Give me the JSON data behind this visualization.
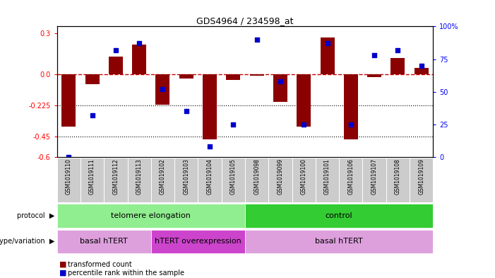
{
  "title": "GDS4964 / 234598_at",
  "samples": [
    "GSM1019110",
    "GSM1019111",
    "GSM1019112",
    "GSM1019113",
    "GSM1019102",
    "GSM1019103",
    "GSM1019104",
    "GSM1019105",
    "GSM1019098",
    "GSM1019099",
    "GSM1019100",
    "GSM1019101",
    "GSM1019106",
    "GSM1019107",
    "GSM1019108",
    "GSM1019109"
  ],
  "red_bars": [
    -0.38,
    -0.07,
    0.13,
    0.22,
    -0.22,
    -0.03,
    -0.47,
    -0.04,
    -0.01,
    -0.2,
    -0.38,
    0.27,
    -0.47,
    -0.02,
    0.12,
    0.05
  ],
  "blue_percentiles": [
    0,
    32,
    82,
    87,
    52,
    35,
    8,
    25,
    90,
    58,
    25,
    87,
    25,
    78,
    82,
    70
  ],
  "ylim_left": [
    -0.6,
    0.35
  ],
  "ylim_right": [
    0,
    100
  ],
  "yticks_left": [
    0.3,
    0.0,
    -0.225,
    -0.45,
    -0.6
  ],
  "yticks_right": [
    100,
    75,
    50,
    25,
    0
  ],
  "protocol_groups": [
    {
      "label": "telomere elongation",
      "start": 0,
      "end": 7,
      "color": "#90EE90"
    },
    {
      "label": "control",
      "start": 8,
      "end": 15,
      "color": "#33CC33"
    }
  ],
  "genotype_groups": [
    {
      "label": "basal hTERT",
      "start": 0,
      "end": 3,
      "color": "#DDA0DD"
    },
    {
      "label": "hTERT overexpression",
      "start": 4,
      "end": 7,
      "color": "#CC44CC"
    },
    {
      "label": "basal hTERT",
      "start": 8,
      "end": 15,
      "color": "#DDA0DD"
    }
  ],
  "bar_color": "#8B0000",
  "blue_color": "#0000CC",
  "dashed_color": "#CC0000",
  "label_bg": "#BBBBBB",
  "bg_color": "#FFFFFF"
}
